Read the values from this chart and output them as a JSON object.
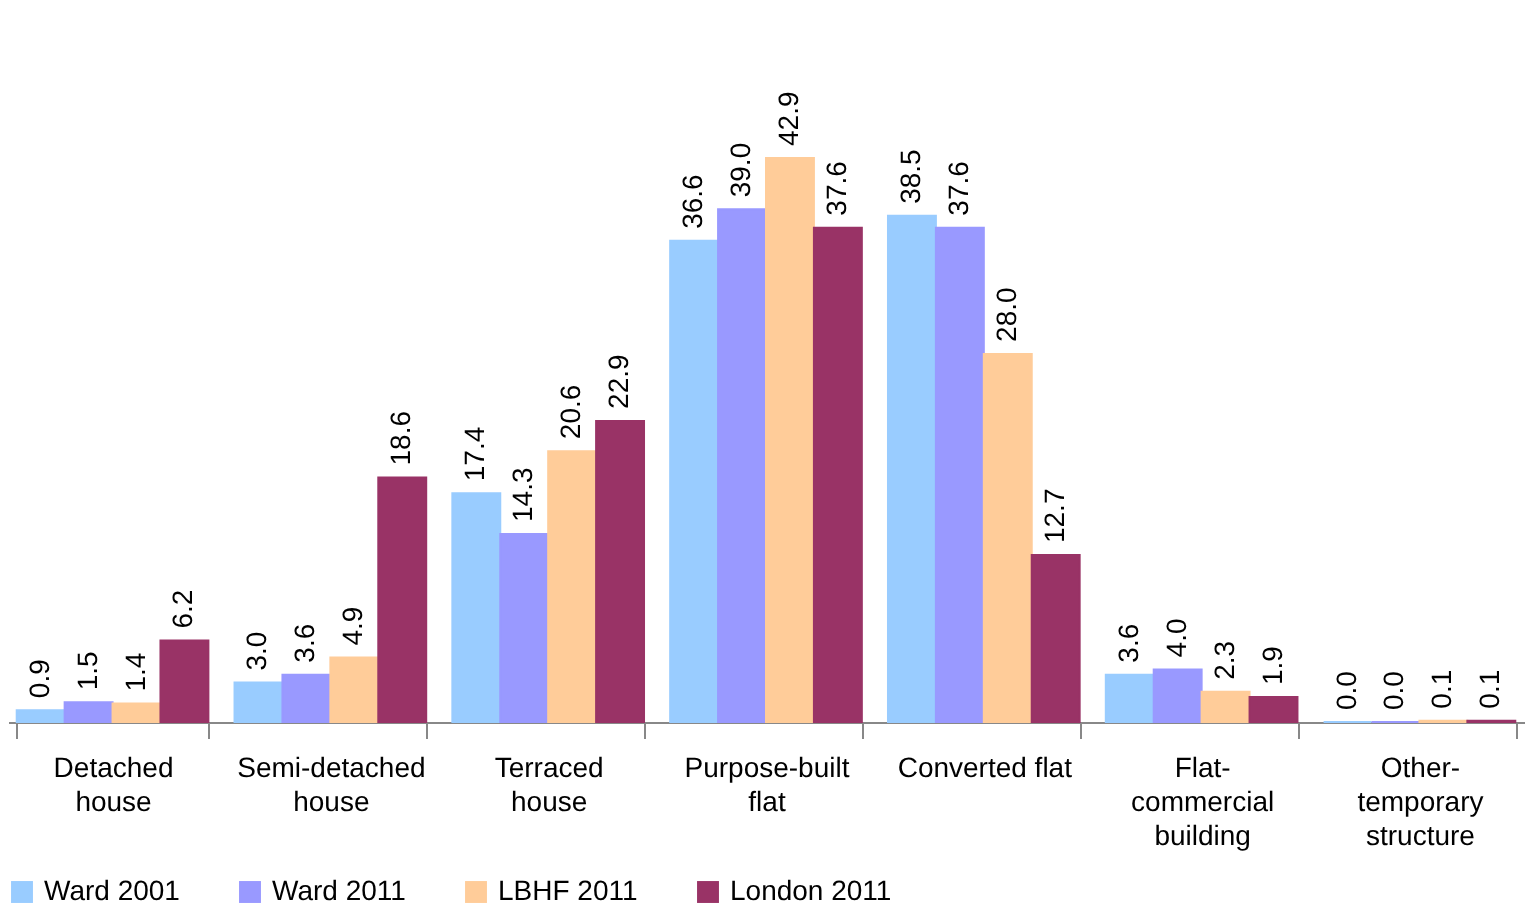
{
  "chart_data": {
    "type": "bar",
    "categories": [
      "Detached\nhouse",
      "Semi-detached\nhouse",
      "Terraced\nhouse",
      "Purpose-built\nflat",
      "Converted flat",
      "Flat-\ncommercial\nbuilding",
      "Other-\ntemporary\nstructure"
    ],
    "series": [
      {
        "name": "Ward 2001",
        "color": "#99ccff",
        "values": [
          0.9,
          3.0,
          17.4,
          36.6,
          38.5,
          3.6,
          0.0
        ],
        "value_labels": [
          "0.9",
          "3.0",
          "17.4",
          "36.6",
          "38.5",
          "3.6",
          "0.0"
        ]
      },
      {
        "name": "Ward 2011",
        "color": "#9999ff",
        "values": [
          1.5,
          3.6,
          14.3,
          39.0,
          37.6,
          4.0,
          0.0
        ],
        "value_labels": [
          "1.5",
          "3.6",
          "14.3",
          "39.0",
          "37.6",
          "4.0",
          "0.0"
        ]
      },
      {
        "name": "LBHF 2011",
        "color": "#ffcc99",
        "values": [
          1.4,
          4.9,
          20.6,
          42.9,
          28.0,
          2.3,
          0.1
        ],
        "value_labels": [
          "1.4",
          "4.9",
          "20.6",
          "42.9",
          "28.0",
          "2.3",
          "0.1"
        ]
      },
      {
        "name": "London 2011",
        "color": "#993366",
        "values": [
          6.2,
          18.6,
          22.9,
          37.6,
          12.7,
          1.9,
          0.1
        ],
        "value_labels": [
          "6.2",
          "18.6",
          "22.9",
          "37.6",
          "12.7",
          "1.9",
          "0.1"
        ]
      }
    ],
    "legend": "bottom",
    "grid": false
  }
}
